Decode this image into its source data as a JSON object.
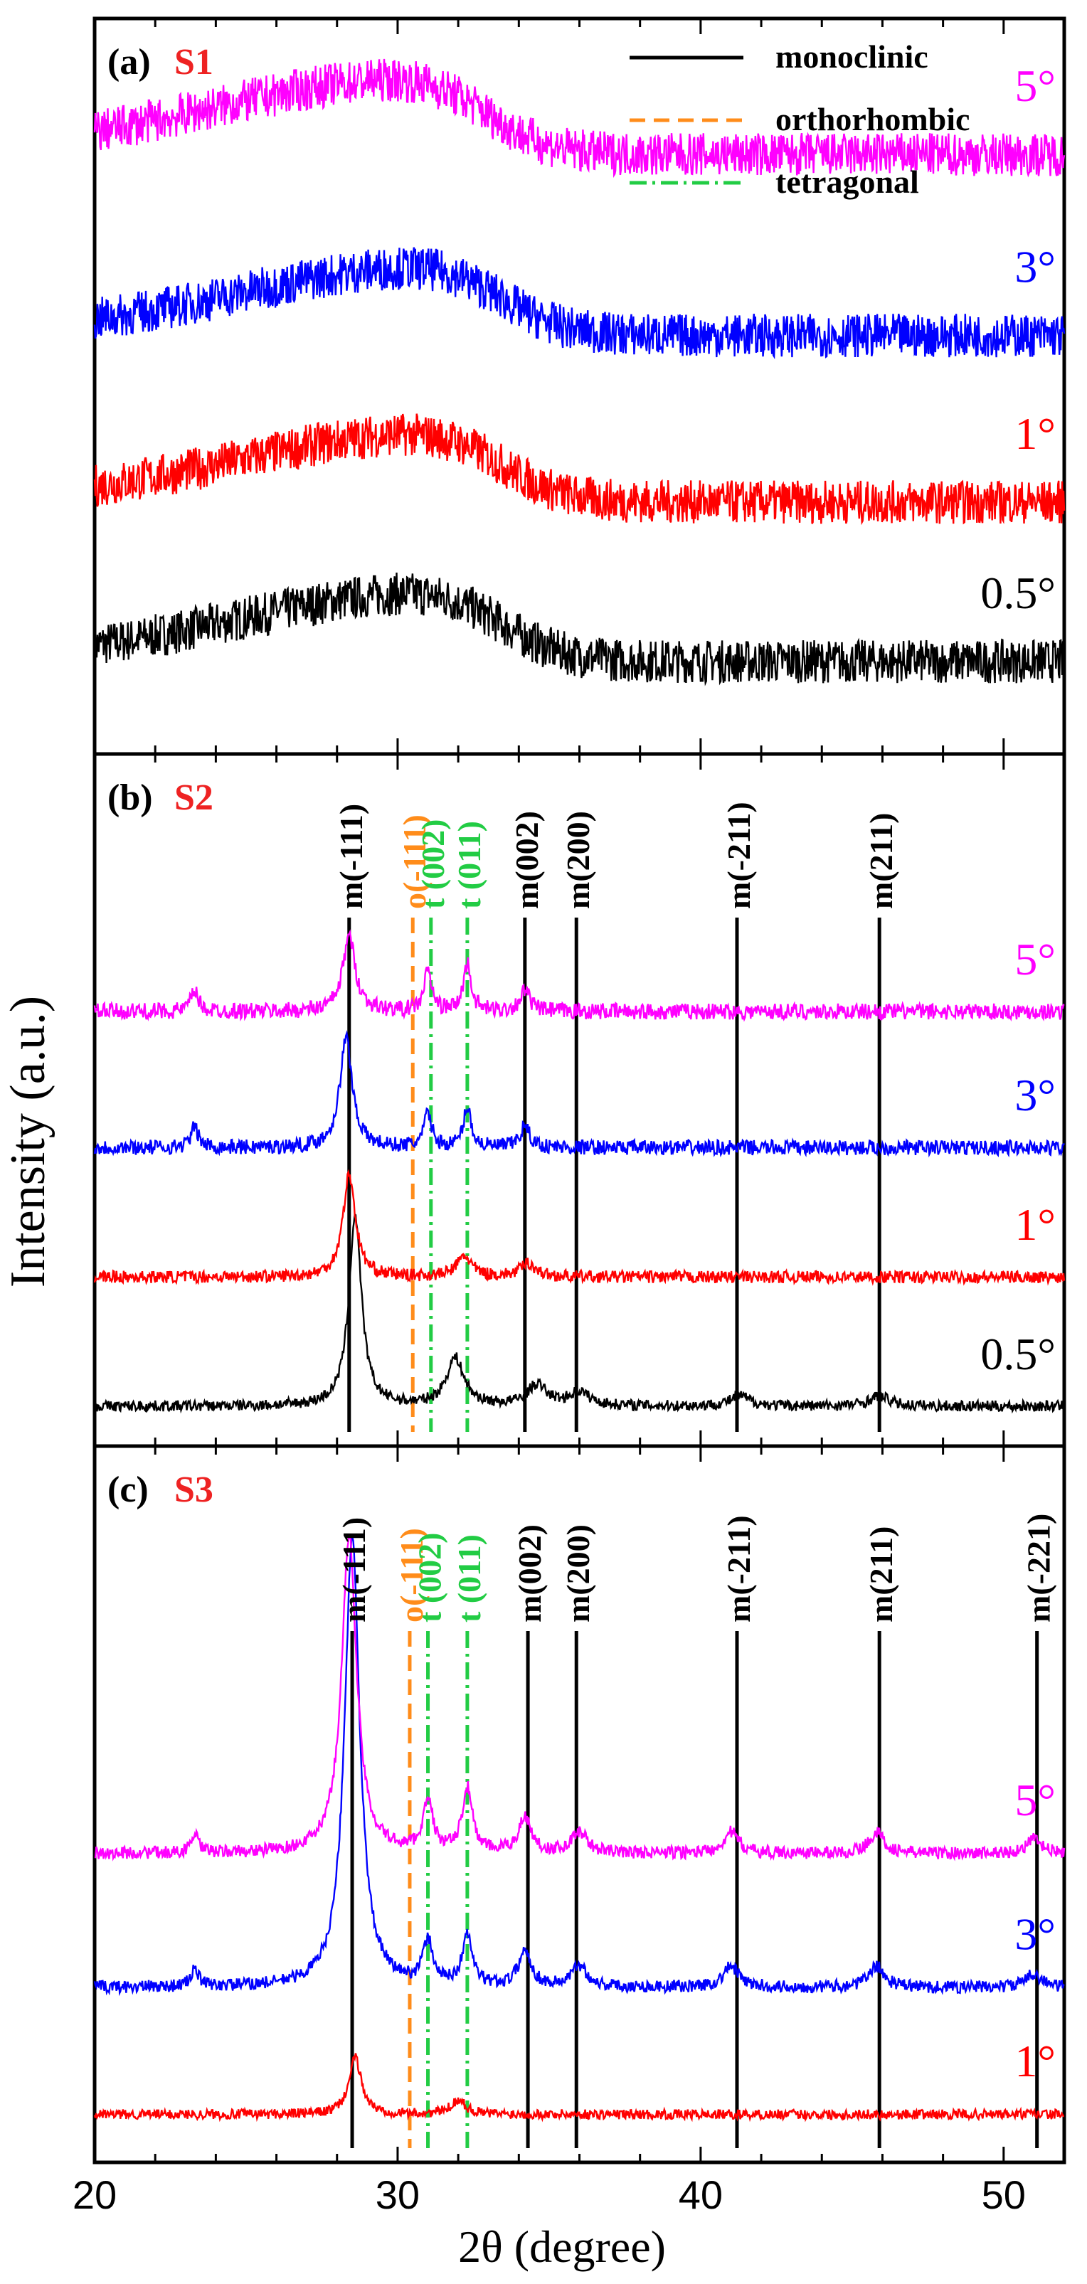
{
  "figure": {
    "ylabel": "Intensity (a.u.)",
    "xlabel": "2θ (degree)",
    "xticks": [
      20,
      30,
      40,
      50
    ],
    "xlim": [
      20,
      52
    ]
  },
  "legend": {
    "entries": [
      {
        "label": "monoclinic",
        "color": "#000000",
        "style": "solid"
      },
      {
        "label": "orthorhombic",
        "color": "#ff8c1a",
        "style": "dash"
      },
      {
        "label": "tetragonal",
        "color": "#22cc44",
        "style": "dashdot"
      }
    ]
  },
  "colors": {
    "0.5°": "#000000",
    "1°": "#ff0000",
    "3°": "#0000ff",
    "5°": "#ff00ff",
    "sample_label": "#ee2222",
    "orthorhombic": "#ff8c1a",
    "tetragonal": "#22cc44"
  },
  "chart_data": [
    {
      "type": "line",
      "panel_label": "(a)",
      "sample": "S1",
      "title": "(a) S1",
      "xlabel": "2θ (degree)",
      "ylabel": "Intensity (a.u.)",
      "xlim": [
        20,
        52
      ],
      "ylim": [
        0,
        100
      ],
      "grid": false,
      "series": [
        {
          "name": "0.5°",
          "offset": 12,
          "amplitude": 9,
          "noise": 3.0,
          "hump": {
            "center": 32.0,
            "width": 3.8,
            "height": 10
          }
        },
        {
          "name": "1°",
          "offset": 34,
          "amplitude": 9,
          "noise": 3.0,
          "hump": {
            "center": 32.0,
            "width": 3.8,
            "height": 10
          }
        },
        {
          "name": "3°",
          "offset": 57,
          "amplitude": 9,
          "noise": 3.0,
          "hump": {
            "center": 32.0,
            "width": 3.8,
            "height": 10
          }
        },
        {
          "name": "5°",
          "offset": 82,
          "amplitude": 9,
          "noise": 3.0,
          "hump": {
            "center": 31.5,
            "width": 4.0,
            "height": 11
          }
        }
      ],
      "reference_lines": []
    },
    {
      "type": "line",
      "panel_label": "(b)",
      "sample": "S2",
      "title": "(b) S2",
      "xlabel": "2θ (degree)",
      "ylabel": "Intensity (a.u.)",
      "xlim": [
        20,
        52
      ],
      "ylim": [
        0,
        100
      ],
      "grid": false,
      "series": [
        {
          "name": "0.5°",
          "offset": 5,
          "noise": 0.8,
          "peaks": [
            {
              "x": 28.6,
              "h": 28,
              "w": 0.25
            },
            {
              "x": 31.9,
              "h": 7,
              "w": 0.35
            },
            {
              "x": 34.6,
              "h": 3,
              "w": 0.4
            },
            {
              "x": 36.0,
              "h": 2,
              "w": 0.4
            },
            {
              "x": 41.3,
              "h": 1.5,
              "w": 0.4
            },
            {
              "x": 45.9,
              "h": 1.5,
              "w": 0.4
            }
          ]
        },
        {
          "name": "1°",
          "offset": 24,
          "noise": 0.9,
          "peaks": [
            {
              "x": 28.4,
              "h": 15,
              "w": 0.25
            },
            {
              "x": 32.2,
              "h": 3,
              "w": 0.3
            },
            {
              "x": 34.3,
              "h": 2,
              "w": 0.3
            }
          ]
        },
        {
          "name": "3°",
          "offset": 43,
          "noise": 1.1,
          "peaks": [
            {
              "x": 23.3,
              "h": 3,
              "w": 0.15
            },
            {
              "x": 28.3,
              "h": 16,
              "w": 0.25
            },
            {
              "x": 31.0,
              "h": 5,
              "w": 0.15
            },
            {
              "x": 32.3,
              "h": 6,
              "w": 0.15
            },
            {
              "x": 34.2,
              "h": 3,
              "w": 0.2
            }
          ]
        },
        {
          "name": "5°",
          "offset": 63,
          "noise": 1.2,
          "peaks": [
            {
              "x": 23.3,
              "h": 3,
              "w": 0.15
            },
            {
              "x": 28.4,
              "h": 11,
              "w": 0.25
            },
            {
              "x": 31.0,
              "h": 6,
              "w": 0.15
            },
            {
              "x": 32.3,
              "h": 7,
              "w": 0.15
            },
            {
              "x": 34.2,
              "h": 3,
              "w": 0.2
            }
          ]
        }
      ],
      "reference_lines": [
        {
          "x": 28.4,
          "label": "m(-111)",
          "phase": "monoclinic"
        },
        {
          "x": 30.5,
          "label": "o(-111)",
          "phase": "orthorhombic"
        },
        {
          "x": 31.1,
          "label": "t (002)",
          "phase": "tetragonal"
        },
        {
          "x": 32.3,
          "label": "t (011)",
          "phase": "tetragonal"
        },
        {
          "x": 34.2,
          "label": "m(002)",
          "phase": "monoclinic"
        },
        {
          "x": 35.9,
          "label": "m(200)",
          "phase": "monoclinic"
        },
        {
          "x": 41.2,
          "label": "m(-211)",
          "phase": "monoclinic"
        },
        {
          "x": 45.9,
          "label": "m(211)",
          "phase": "monoclinic"
        }
      ]
    },
    {
      "type": "line",
      "panel_label": "(c)",
      "sample": "S3",
      "title": "(c) S3",
      "xlabel": "2θ (degree)",
      "ylabel": "Intensity (a.u.)",
      "xlim": [
        20,
        52
      ],
      "ylim": [
        0,
        100
      ],
      "grid": false,
      "series": [
        {
          "name": "1°",
          "offset": 6,
          "noise": 0.7,
          "peaks": [
            {
              "x": 28.6,
              "h": 8,
              "w": 0.25
            },
            {
              "x": 32.0,
              "h": 2,
              "w": 0.3
            }
          ]
        },
        {
          "name": "3°",
          "offset": 24,
          "noise": 0.9,
          "peaks": [
            {
              "x": 23.3,
              "h": 2.5,
              "w": 0.15
            },
            {
              "x": 28.5,
              "h": 64,
              "w": 0.3
            },
            {
              "x": 31.0,
              "h": 6,
              "w": 0.2
            },
            {
              "x": 32.3,
              "h": 7,
              "w": 0.2
            },
            {
              "x": 34.2,
              "h": 5,
              "w": 0.25
            },
            {
              "x": 36.0,
              "h": 3,
              "w": 0.3
            },
            {
              "x": 41.0,
              "h": 3,
              "w": 0.3
            },
            {
              "x": 45.8,
              "h": 3,
              "w": 0.3
            },
            {
              "x": 51.0,
              "h": 2,
              "w": 0.3
            }
          ]
        },
        {
          "name": "5°",
          "offset": 43,
          "noise": 0.9,
          "peaks": [
            {
              "x": 23.3,
              "h": 2.5,
              "w": 0.15
            },
            {
              "x": 28.4,
              "h": 45,
              "w": 0.3
            },
            {
              "x": 31.0,
              "h": 7,
              "w": 0.2
            },
            {
              "x": 32.3,
              "h": 9,
              "w": 0.2
            },
            {
              "x": 34.2,
              "h": 5,
              "w": 0.25
            },
            {
              "x": 36.0,
              "h": 3,
              "w": 0.3
            },
            {
              "x": 41.0,
              "h": 3,
              "w": 0.3
            },
            {
              "x": 45.8,
              "h": 3,
              "w": 0.3
            },
            {
              "x": 51.0,
              "h": 2,
              "w": 0.3
            }
          ]
        }
      ],
      "reference_lines": [
        {
          "x": 28.5,
          "label": "m(-111)",
          "phase": "monoclinic"
        },
        {
          "x": 30.4,
          "label": "o(-111)",
          "phase": "orthorhombic"
        },
        {
          "x": 31.0,
          "label": "t (002)",
          "phase": "tetragonal"
        },
        {
          "x": 32.3,
          "label": "t (011)",
          "phase": "tetragonal"
        },
        {
          "x": 34.3,
          "label": "m(002)",
          "phase": "monoclinic"
        },
        {
          "x": 35.9,
          "label": "m(200)",
          "phase": "monoclinic"
        },
        {
          "x": 41.2,
          "label": "m(-211)",
          "phase": "monoclinic"
        },
        {
          "x": 45.9,
          "label": "m(211)",
          "phase": "monoclinic"
        },
        {
          "x": 51.1,
          "label": "m(-221)",
          "phase": "monoclinic"
        }
      ]
    }
  ]
}
